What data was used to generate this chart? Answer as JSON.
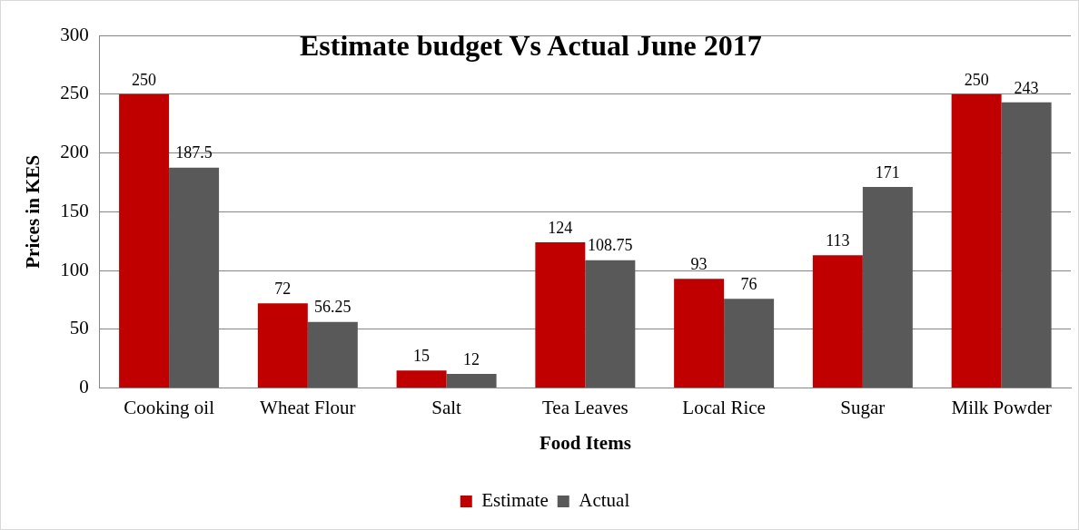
{
  "chart_data": {
    "type": "bar",
    "title": "Estimate budget Vs Actual June 2017",
    "xlabel": "Food Items",
    "ylabel": "Prices in KES",
    "categories": [
      "Cooking oil",
      "Wheat Flour",
      "Salt",
      "Tea Leaves",
      "Local Rice",
      "Sugar",
      "Milk Powder"
    ],
    "series": [
      {
        "name": "Estimate",
        "color": "#c00000",
        "values": [
          250,
          72,
          15,
          124,
          93,
          113,
          250
        ]
      },
      {
        "name": "Actual",
        "color": "#595959",
        "values": [
          187.5,
          56.25,
          12,
          108.75,
          76,
          171,
          243
        ]
      }
    ],
    "ylim": [
      0,
      300
    ],
    "yticks": [
      0,
      50,
      100,
      150,
      200,
      250,
      300
    ],
    "grid": "y",
    "legend": "bottom",
    "data_labels": true
  }
}
